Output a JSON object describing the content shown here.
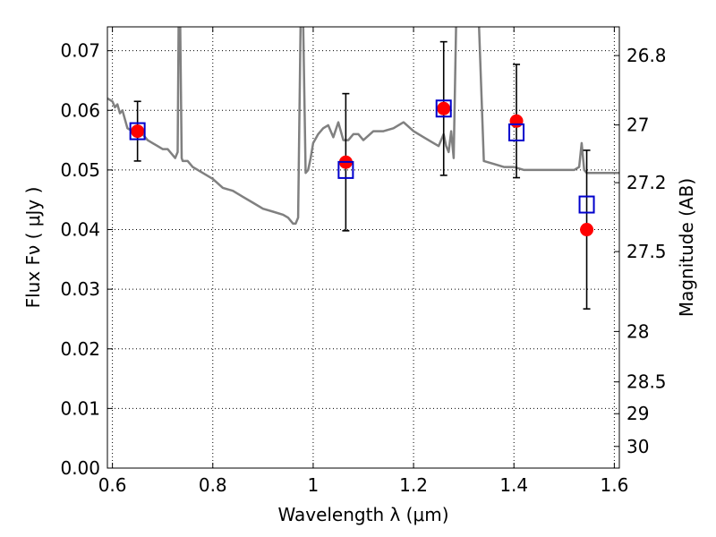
{
  "chart_data": {
    "type": "scatter",
    "xlabel": "Wavelength  λ (μm)",
    "ylabel": "Flux  Fν ( μJy )",
    "ylabel_right": "Magnitude (AB)",
    "xlim": [
      0.59,
      1.61
    ],
    "ylim": [
      0.0,
      0.074
    ],
    "grid": true,
    "x_ticks": [
      {
        "value": 0.6,
        "label": "0.6"
      },
      {
        "value": 0.8,
        "label": "0.8"
      },
      {
        "value": 1.0,
        "label": "1"
      },
      {
        "value": 1.2,
        "label": "1.2"
      },
      {
        "value": 1.4,
        "label": "1.4"
      },
      {
        "value": 1.6,
        "label": "1.6"
      }
    ],
    "y_ticks": [
      {
        "value": 0.0,
        "label": "0.00"
      },
      {
        "value": 0.01,
        "label": "0.01"
      },
      {
        "value": 0.02,
        "label": "0.02"
      },
      {
        "value": 0.03,
        "label": "0.03"
      },
      {
        "value": 0.04,
        "label": "0.04"
      },
      {
        "value": 0.05,
        "label": "0.05"
      },
      {
        "value": 0.06,
        "label": "0.06"
      },
      {
        "value": 0.07,
        "label": "0.07"
      }
    ],
    "right_ticks": [
      {
        "mag": 26.8,
        "label": "26.8"
      },
      {
        "mag": 27.0,
        "label": "27"
      },
      {
        "mag": 27.2,
        "label": "27.2"
      },
      {
        "mag": 27.5,
        "label": "27.5"
      },
      {
        "mag": 28.0,
        "label": "28"
      },
      {
        "mag": 28.5,
        "label": "28.5"
      },
      {
        "mag": 29.0,
        "label": "29"
      },
      {
        "mag": 30.0,
        "label": "30"
      }
    ],
    "series": [
      {
        "kind": "line",
        "color": "#808080",
        "x": [
          0.59,
          0.6,
          0.605,
          0.61,
          0.615,
          0.62,
          0.625,
          0.63,
          0.64,
          0.65,
          0.66,
          0.67,
          0.68,
          0.69,
          0.7,
          0.71,
          0.72,
          0.725,
          0.73,
          0.732,
          0.735,
          0.738,
          0.74,
          0.75,
          0.76,
          0.78,
          0.8,
          0.82,
          0.84,
          0.86,
          0.88,
          0.9,
          0.92,
          0.94,
          0.95,
          0.96,
          0.965,
          0.97,
          0.975,
          0.98,
          0.985,
          0.99,
          0.995,
          1.0,
          1.01,
          1.02,
          1.03,
          1.04,
          1.05,
          1.06,
          1.07,
          1.08,
          1.09,
          1.1,
          1.12,
          1.14,
          1.16,
          1.18,
          1.2,
          1.22,
          1.24,
          1.25,
          1.26,
          1.265,
          1.27,
          1.275,
          1.28,
          1.285,
          1.29,
          1.3,
          1.32,
          1.33,
          1.34,
          1.36,
          1.38,
          1.4,
          1.42,
          1.44,
          1.46,
          1.48,
          1.5,
          1.52,
          1.53,
          1.535,
          1.54,
          1.545,
          1.55,
          1.56,
          1.58,
          1.6,
          1.61
        ],
        "y": [
          0.062,
          0.0615,
          0.0605,
          0.061,
          0.0595,
          0.06,
          0.0585,
          0.057,
          0.0565,
          0.0555,
          0.056,
          0.055,
          0.0545,
          0.054,
          0.0535,
          0.0535,
          0.0525,
          0.052,
          0.053,
          0.075,
          0.075,
          0.052,
          0.0515,
          0.0515,
          0.0505,
          0.0495,
          0.0485,
          0.047,
          0.0465,
          0.0455,
          0.0445,
          0.0435,
          0.043,
          0.0425,
          0.042,
          0.041,
          0.041,
          0.042,
          0.075,
          0.075,
          0.0495,
          0.05,
          0.052,
          0.0545,
          0.056,
          0.057,
          0.0575,
          0.0555,
          0.058,
          0.055,
          0.055,
          0.056,
          0.056,
          0.055,
          0.0565,
          0.0565,
          0.057,
          0.058,
          0.0565,
          0.0555,
          0.0545,
          0.054,
          0.056,
          0.054,
          0.053,
          0.0565,
          0.052,
          0.075,
          0.075,
          0.075,
          0.075,
          0.075,
          0.0515,
          0.051,
          0.0505,
          0.0505,
          0.05,
          0.05,
          0.05,
          0.05,
          0.05,
          0.05,
          0.0505,
          0.0545,
          0.05,
          0.0495,
          0.0495,
          0.0495,
          0.0495,
          0.0495,
          0.0495
        ]
      },
      {
        "kind": "points",
        "color": "#ff0000",
        "x": [
          0.65,
          1.065,
          1.26,
          1.405,
          1.545
        ],
        "y": [
          0.0565,
          0.0513,
          0.0603,
          0.0582,
          0.04
        ],
        "yerr": [
          0.005,
          0.0115,
          0.0112,
          0.0095,
          0.0133
        ]
      },
      {
        "kind": "open-squares",
        "color": "#0000cc",
        "x": [
          0.65,
          1.065,
          1.26,
          1.405,
          1.545
        ],
        "y": [
          0.0565,
          0.05,
          0.0603,
          0.0563,
          0.0442
        ]
      }
    ]
  }
}
